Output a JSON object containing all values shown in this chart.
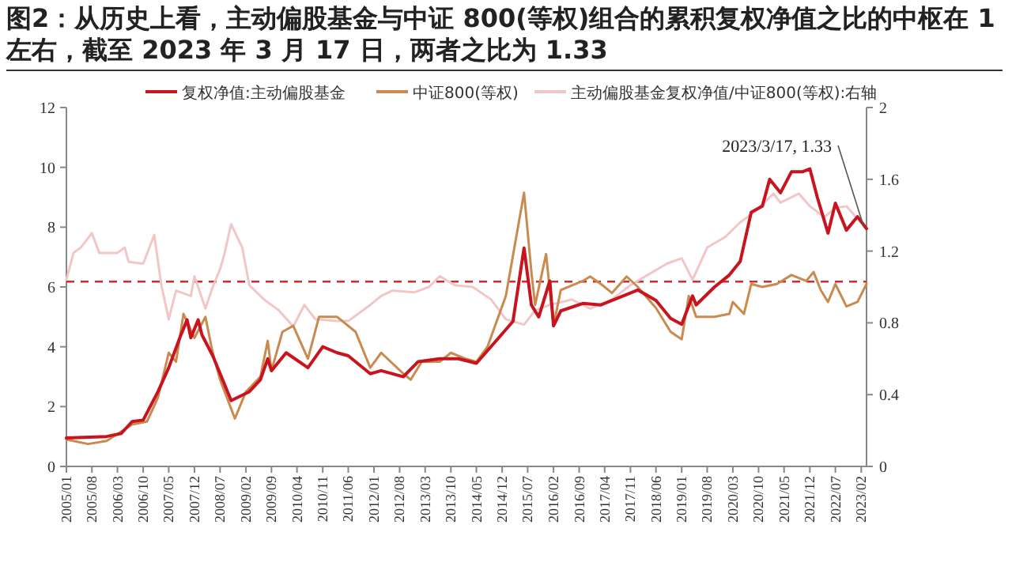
{
  "chart_data": {
    "type": "line",
    "title": "图2：从历史上看，主动偏股基金与中证 800(等权)组合的累积复权净值之比的中枢在 1 左右，截至 2023 年 3 月 17 日，两者之比为 1.33",
    "xlim": [
      "2005-01",
      "2023-03-17"
    ],
    "xticks": [
      {
        "value": "2005-01",
        "label": "2005/01"
      },
      {
        "value": "2005-08",
        "label": "2005/08"
      },
      {
        "value": "2006-03",
        "label": "2006/03"
      },
      {
        "value": "2006-10",
        "label": "2006/10"
      },
      {
        "value": "2007-05",
        "label": "2007/05"
      },
      {
        "value": "2007-12",
        "label": "2007/12"
      },
      {
        "value": "2008-07",
        "label": "2008/07"
      },
      {
        "value": "2009-02",
        "label": "2009/02"
      },
      {
        "value": "2009-09",
        "label": "2009/09"
      },
      {
        "value": "2010-04",
        "label": "2010/04"
      },
      {
        "value": "2010-11",
        "label": "2010/11"
      },
      {
        "value": "2011-06",
        "label": "2011/06"
      },
      {
        "value": "2012-01",
        "label": "2012/01"
      },
      {
        "value": "2012-08",
        "label": "2012/08"
      },
      {
        "value": "2013-03",
        "label": "2013/03"
      },
      {
        "value": "2013-10",
        "label": "2013/10"
      },
      {
        "value": "2014-05",
        "label": "2014/05"
      },
      {
        "value": "2014-12",
        "label": "2014/12"
      },
      {
        "value": "2015-07",
        "label": "2015/07"
      },
      {
        "value": "2016-02",
        "label": "2016/02"
      },
      {
        "value": "2016-09",
        "label": "2016/09"
      },
      {
        "value": "2017-04",
        "label": "2017/04"
      },
      {
        "value": "2017-11",
        "label": "2017/11"
      },
      {
        "value": "2018-06",
        "label": "2018/06"
      },
      {
        "value": "2019-01",
        "label": "2019/01"
      },
      {
        "value": "2019-08",
        "label": "2019/08"
      },
      {
        "value": "2020-03",
        "label": "2020/03"
      },
      {
        "value": "2020-10",
        "label": "2020/10"
      },
      {
        "value": "2021-05",
        "label": "2021/05"
      },
      {
        "value": "2021-12",
        "label": "2021/12"
      },
      {
        "value": "2022-07",
        "label": "2022/07"
      },
      {
        "value": "2023-02",
        "label": "2023/02"
      }
    ],
    "ylim": [
      0,
      12
    ],
    "yticks": [
      0,
      2,
      4,
      6,
      8,
      10,
      12
    ],
    "y2lim": [
      0,
      2
    ],
    "y2ticks": [
      0,
      0.4,
      0.8,
      1.2,
      1.6,
      2
    ],
    "grid": false,
    "legend": "top",
    "line_style": "solid",
    "marker": "none",
    "ref_lines": [
      {
        "axis": "y2",
        "value": 1.03,
        "color": "#d9262b",
        "line_style": "dashed"
      }
    ],
    "annotations": [
      {
        "text": "2023/3/17, 1.33",
        "x": "2023-03-17",
        "y": 7.95
      }
    ],
    "series": [
      {
        "name": "复权净值:主动偏股基金",
        "color": "#c8141e",
        "x": [
          "2005-01",
          "2005-12",
          "2006-04",
          "2006-07",
          "2006-10",
          "2007-02",
          "2007-05",
          "2007-08",
          "2007-10",
          "2007-11",
          "2008-01",
          "2008-02",
          "2008-05",
          "2008-08",
          "2008-10",
          "2009-03",
          "2009-06",
          "2009-08",
          "2009-09",
          "2010-01",
          "2010-07",
          "2010-11",
          "2011-03",
          "2011-06",
          "2011-12",
          "2012-03",
          "2012-09",
          "2013-01",
          "2013-07",
          "2013-12",
          "2014-05",
          "2014-10",
          "2015-03",
          "2015-06",
          "2015-08",
          "2015-10",
          "2016-01",
          "2016-02",
          "2016-04",
          "2016-10",
          "2017-03",
          "2017-09",
          "2018-01",
          "2018-06",
          "2018-10",
          "2019-01",
          "2019-04",
          "2019-05",
          "2019-10",
          "2020-02",
          "2020-05",
          "2020-08",
          "2020-11",
          "2021-01",
          "2021-04",
          "2021-07",
          "2021-10",
          "2021-12",
          "2022-02",
          "2022-05",
          "2022-07",
          "2022-10",
          "2023-01",
          "2023-03-17"
        ],
        "values": [
          0.95,
          1.0,
          1.1,
          1.5,
          1.55,
          2.5,
          3.3,
          4.3,
          4.9,
          4.3,
          4.9,
          4.4,
          3.7,
          2.8,
          2.2,
          2.5,
          2.9,
          3.6,
          3.2,
          3.8,
          3.3,
          4.0,
          3.8,
          3.7,
          3.1,
          3.2,
          3.0,
          3.5,
          3.6,
          3.6,
          3.45,
          4.15,
          4.85,
          7.3,
          5.4,
          5.0,
          6.2,
          4.7,
          5.2,
          5.45,
          5.4,
          5.7,
          5.9,
          5.55,
          4.95,
          4.75,
          5.7,
          5.4,
          6.0,
          6.4,
          6.85,
          8.5,
          8.7,
          9.6,
          9.15,
          9.85,
          9.85,
          9.95,
          9.0,
          7.8,
          8.8,
          7.9,
          8.35,
          7.95
        ]
      },
      {
        "name": "中证800(等权)",
        "color": "#c98a50",
        "x": [
          "2005-01",
          "2005-07",
          "2005-12",
          "2006-07",
          "2006-11",
          "2007-02",
          "2007-05",
          "2007-07",
          "2007-09",
          "2007-12",
          "2008-03",
          "2008-05",
          "2008-07",
          "2008-11",
          "2009-02",
          "2009-06",
          "2009-08",
          "2009-09",
          "2009-12",
          "2010-03",
          "2010-07",
          "2010-10",
          "2011-03",
          "2011-08",
          "2011-12",
          "2012-03",
          "2012-09",
          "2012-11",
          "2013-02",
          "2013-07",
          "2013-10",
          "2014-02",
          "2014-05",
          "2014-08",
          "2015-01",
          "2015-06",
          "2015-08",
          "2015-09",
          "2015-12",
          "2016-02",
          "2016-04",
          "2016-10",
          "2016-12",
          "2017-03",
          "2017-06",
          "2017-10",
          "2018-01",
          "2018-06",
          "2018-10",
          "2019-01",
          "2019-03",
          "2019-05",
          "2019-10",
          "2020-02",
          "2020-03",
          "2020-06",
          "2020-08",
          "2020-11",
          "2021-03",
          "2021-07",
          "2021-11",
          "2022-01",
          "2022-03",
          "2022-05",
          "2022-07",
          "2022-10",
          "2023-01",
          "2023-03-17"
        ],
        "values": [
          0.9,
          0.75,
          0.85,
          1.4,
          1.5,
          2.3,
          3.8,
          3.5,
          5.1,
          4.3,
          5.0,
          3.8,
          2.9,
          1.6,
          2.5,
          3.0,
          4.2,
          3.2,
          4.5,
          4.7,
          3.6,
          5.0,
          5.0,
          4.5,
          3.3,
          3.8,
          3.1,
          2.9,
          3.5,
          3.5,
          3.8,
          3.6,
          3.5,
          4.0,
          5.7,
          9.15,
          6.5,
          5.4,
          7.1,
          4.7,
          5.9,
          6.2,
          6.35,
          6.1,
          5.8,
          6.35,
          6.0,
          5.3,
          4.5,
          4.25,
          5.7,
          5.0,
          5.0,
          5.1,
          5.5,
          5.1,
          6.1,
          6.0,
          6.1,
          6.4,
          6.2,
          6.5,
          5.9,
          5.5,
          6.1,
          5.35,
          5.5,
          6.1
        ]
      },
      {
        "name": "主动偏股基金复权净值/中证800(等权):右轴",
        "color": "#f2c6c6",
        "axis": "y2",
        "x": [
          "2005-01",
          "2005-03",
          "2005-05",
          "2005-08",
          "2005-10",
          "2006-03",
          "2006-05",
          "2006-06",
          "2006-10",
          "2007-01",
          "2007-03",
          "2007-05",
          "2007-07",
          "2007-11",
          "2007-12",
          "2008-03",
          "2008-05",
          "2008-07",
          "2008-08",
          "2008-10",
          "2009-01",
          "2009-03",
          "2009-07",
          "2009-11",
          "2010-03",
          "2010-06",
          "2010-09",
          "2011-03",
          "2011-06",
          "2011-12",
          "2012-03",
          "2012-06",
          "2012-12",
          "2013-04",
          "2013-07",
          "2013-11",
          "2014-04",
          "2014-09",
          "2015-01",
          "2015-06",
          "2015-09",
          "2016-01",
          "2016-07",
          "2016-12",
          "2017-06",
          "2017-11",
          "2018-04",
          "2018-09",
          "2019-01",
          "2019-04",
          "2019-08",
          "2020-01",
          "2020-05",
          "2020-09",
          "2021-02",
          "2021-04",
          "2021-09",
          "2021-12",
          "2022-04",
          "2022-07",
          "2022-10",
          "2023-01",
          "2023-03-17"
        ],
        "values": [
          1.04,
          1.19,
          1.22,
          1.3,
          1.19,
          1.19,
          1.22,
          1.14,
          1.13,
          1.29,
          1.01,
          0.82,
          0.98,
          0.95,
          1.06,
          0.88,
          1.0,
          1.1,
          1.17,
          1.35,
          1.22,
          1.01,
          0.93,
          0.87,
          0.78,
          0.9,
          0.82,
          0.81,
          0.81,
          0.9,
          0.95,
          0.98,
          0.97,
          1.0,
          1.06,
          1.01,
          1.0,
          0.93,
          0.82,
          0.79,
          0.87,
          0.9,
          0.93,
          0.88,
          0.93,
          1.01,
          1.07,
          1.13,
          1.16,
          1.04,
          1.22,
          1.28,
          1.36,
          1.42,
          1.52,
          1.47,
          1.52,
          1.45,
          1.39,
          1.44,
          1.45,
          1.38,
          1.33
        ]
      }
    ]
  }
}
